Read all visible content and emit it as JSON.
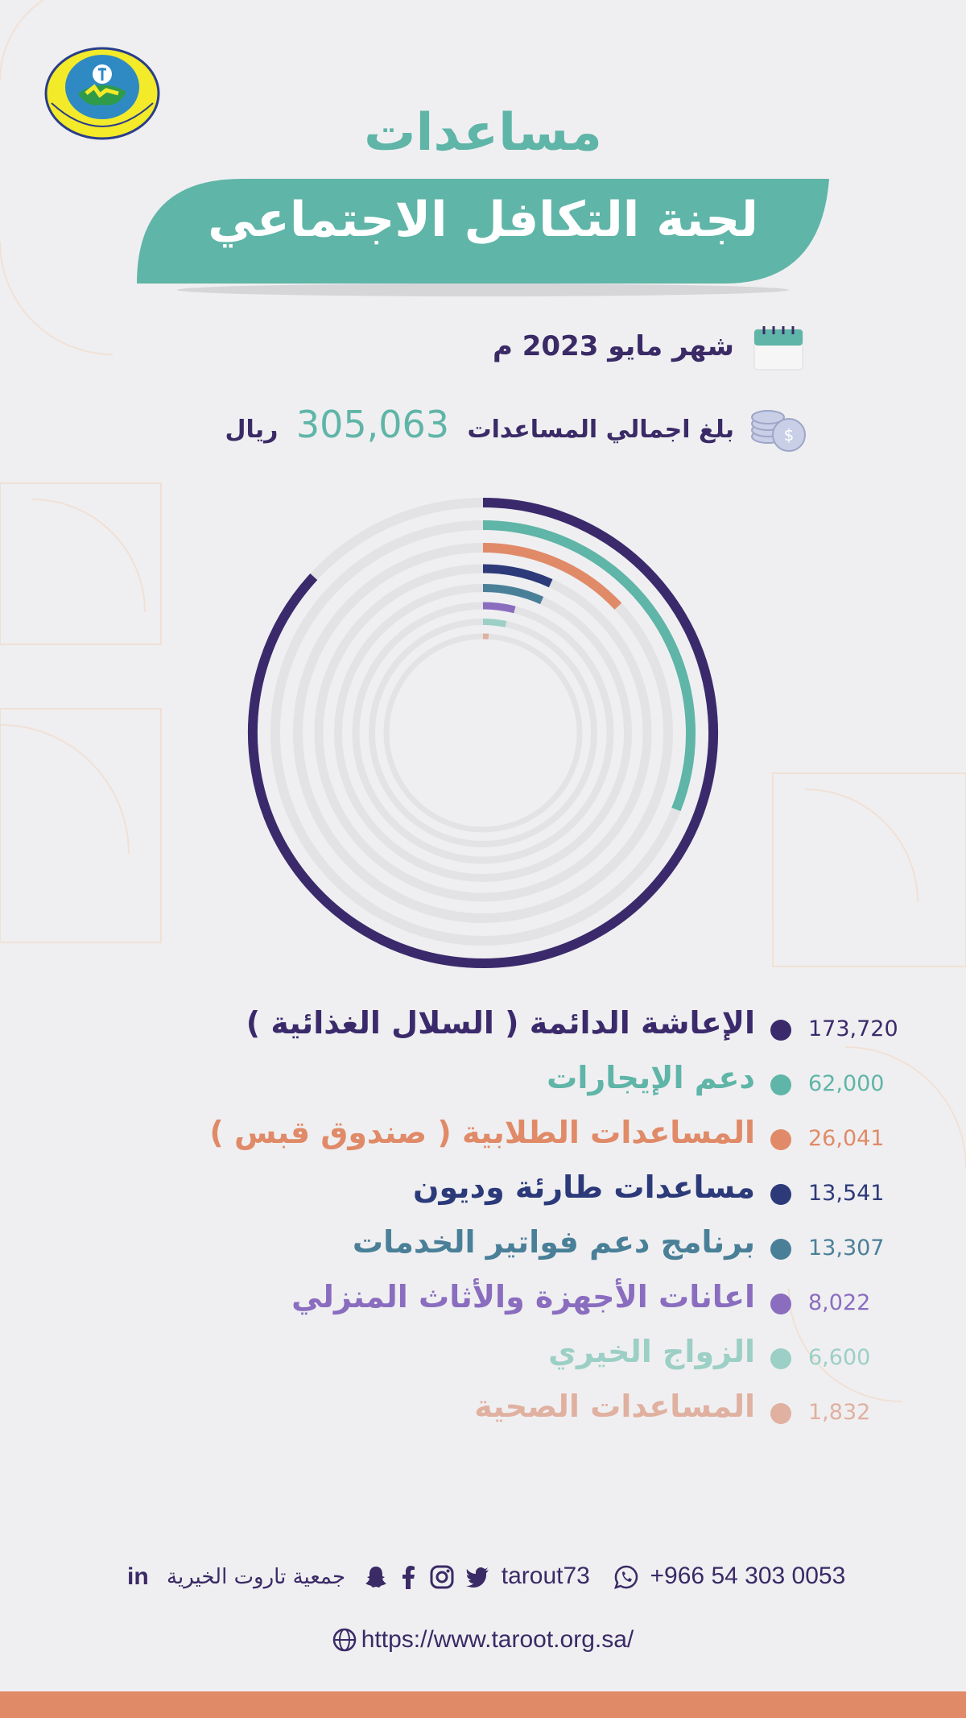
{
  "header": {
    "title_top": "مساعدات",
    "title_banner": "لجنة التكافل الاجتماعي"
  },
  "info": {
    "month": "شهر مايو  2023 م",
    "total_prefix": "بلغ اجمالي المساعدات",
    "total_amount": "305,063",
    "total_currency": "ريال"
  },
  "colors": {
    "teal": "#5fb5a7",
    "purple": "#3a2a66",
    "orange": "#e08a68",
    "track": "#e3e3e5"
  },
  "chart_data": {
    "type": "radial-bar",
    "total": 305063,
    "categories": [
      "الإعاشة الدائمة ( السلال الغذائية )",
      "دعم الإيجارات",
      "المساعدات الطلابية ( صندوق قبس )",
      "مساعدات طارئة وديون",
      "برنامج دعم فواتير الخدمات",
      "اعانات الأجهزة والأثاث المنزلي",
      "الزواج الخيري",
      "المساعدات الصحية"
    ],
    "values": [
      173720,
      62000,
      26041,
      13541,
      13307,
      8022,
      6600,
      1832
    ],
    "value_labels": [
      "173,720",
      "62,000",
      "26,041",
      "13,541",
      "13,307",
      "8,022",
      "6,600",
      "1,832"
    ],
    "colors": [
      "#3b2a6b",
      "#5fb5a7",
      "#e08a68",
      "#2c3a7a",
      "#4a7f98",
      "#8a6dbf",
      "#9ccfc5",
      "#e0b0a0"
    ]
  },
  "footer": {
    "org_name": "جمعية تاروت الخيرية",
    "handle": "tarout73",
    "phone": "+966 54 303 0053",
    "url": "https://www.taroot.org.sa/",
    "icons": [
      "linkedin-icon",
      "snapchat-icon",
      "facebook-icon",
      "instagram-icon",
      "twitter-icon",
      "whatsapp-icon",
      "globe-icon"
    ]
  }
}
